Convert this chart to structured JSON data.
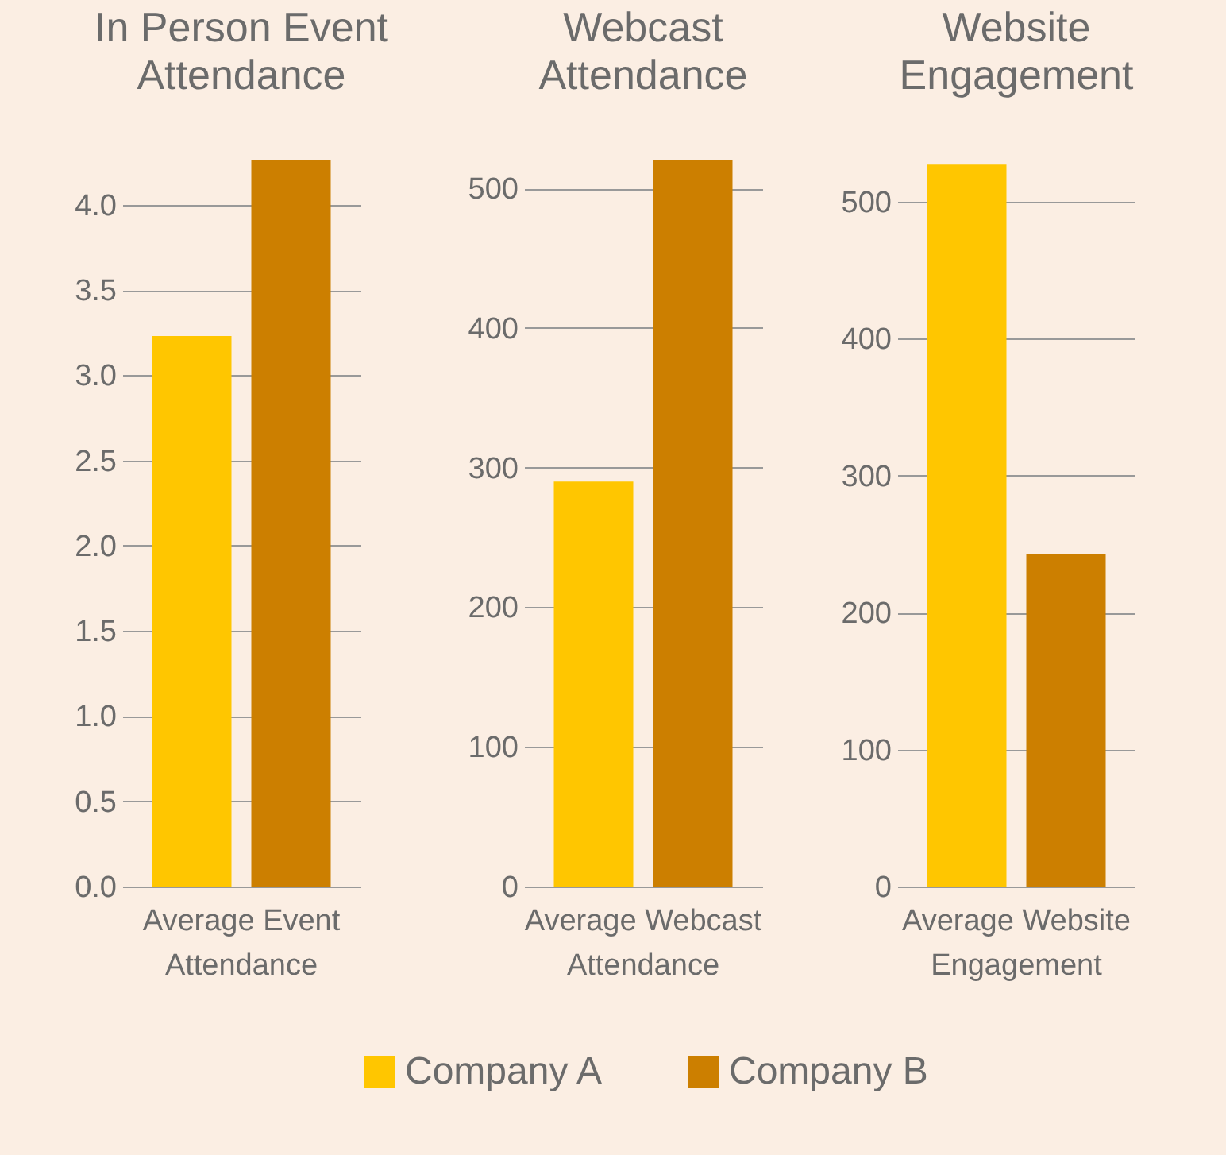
{
  "chart_data": [
    {
      "type": "bar",
      "title": "In Person Event Attendance",
      "categories": [
        "Average Event Attendance"
      ],
      "series": [
        {
          "name": "Company A",
          "color": "#ffc600",
          "values": [
            3.23
          ]
        },
        {
          "name": "Company B",
          "color": "#cc7f00",
          "values": [
            4.26
          ]
        }
      ],
      "ylim": [
        0,
        4.26
      ],
      "yticks": [
        {
          "value": 0,
          "label": "0.0"
        },
        0.5,
        {
          "value": 1,
          "label": "1.0"
        },
        1.5,
        {
          "value": 2,
          "label": "2.0"
        },
        2.5,
        {
          "value": 3,
          "label": "3.0"
        },
        3.5,
        {
          "value": 4,
          "label": "4.0"
        }
      ],
      "grid": "y",
      "legend": "bottom"
    },
    {
      "type": "bar",
      "title": "Webcast Attendance",
      "categories": [
        "Average Webcast Attendance"
      ],
      "series": [
        {
          "name": "Company A",
          "color": "#ffc600",
          "values": [
            290
          ]
        },
        {
          "name": "Company B",
          "color": "#cc7f00",
          "values": [
            520
          ]
        }
      ],
      "ylim": [
        0,
        520
      ],
      "yticks": [
        0,
        100,
        200,
        300,
        400,
        500
      ],
      "grid": "y",
      "legend": "bottom"
    },
    {
      "type": "bar",
      "title": "Website Engagement",
      "categories": [
        "Average Website Engagement"
      ],
      "series": [
        {
          "name": "Company A",
          "color": "#ffc600",
          "values": [
            527
          ]
        },
        {
          "name": "Company B",
          "color": "#cc7f00",
          "values": [
            243
          ]
        }
      ],
      "ylim": [
        0,
        530
      ],
      "yticks": [
        0,
        100,
        200,
        300,
        400,
        500
      ],
      "grid": "y",
      "legend": "bottom"
    }
  ]
}
